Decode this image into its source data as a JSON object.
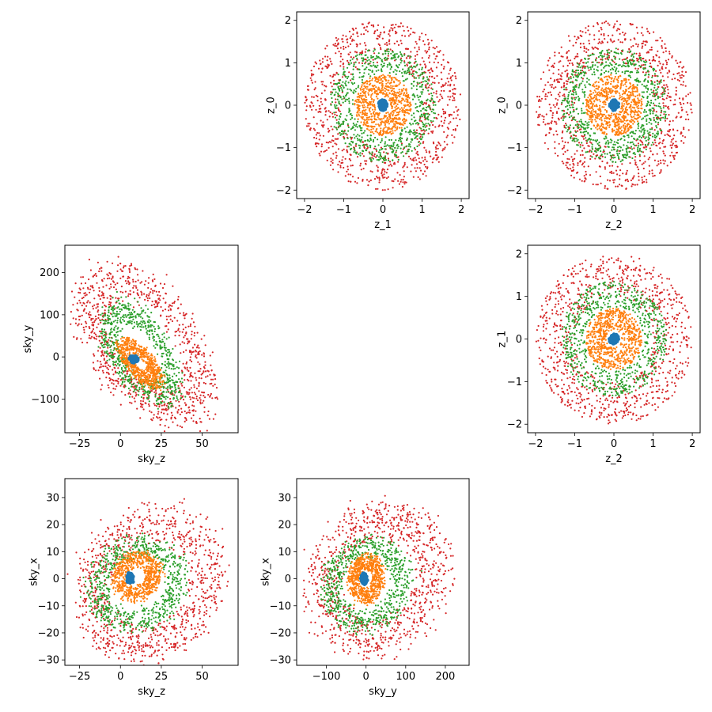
{
  "figure": {
    "background": "#ffffff"
  },
  "colors": {
    "shell_0": "#1f77b4",
    "shell_1": "#ff7f0e",
    "shell_2": "#2ca02c",
    "shell_3": "#d62728"
  },
  "chart_data": [
    {
      "id": "z1_vs_z0",
      "type": "scatter",
      "xlabel": "z_1",
      "ylabel": "z_0",
      "xlim": [
        -2.2,
        2.2
      ],
      "ylim": [
        -2.2,
        2.2
      ],
      "xticks": [
        -2,
        -1,
        0,
        1,
        2
      ],
      "yticks": [
        -2,
        -1,
        0,
        1,
        2
      ],
      "grid": false,
      "series": [
        {
          "color": "#d62728",
          "shape": "annulus",
          "radius_range": [
            1.0,
            2.0
          ],
          "n": 900
        },
        {
          "color": "#2ca02c",
          "shape": "annulus",
          "radius_range": [
            0.75,
            1.35
          ],
          "n": 700
        },
        {
          "color": "#ff7f0e",
          "shape": "annulus",
          "radius_range": [
            0.2,
            0.72
          ],
          "n": 700
        },
        {
          "color": "#1f77b4",
          "shape": "annulus",
          "radius_range": [
            0.0,
            0.12
          ],
          "n": 60
        }
      ]
    },
    {
      "id": "z2_vs_z0",
      "type": "scatter",
      "xlabel": "z_2",
      "ylabel": "z_0",
      "xlim": [
        -2.2,
        2.2
      ],
      "ylim": [
        -2.2,
        2.2
      ],
      "xticks": [
        -2,
        -1,
        0,
        1,
        2
      ],
      "yticks": [
        -2,
        -1,
        0,
        1,
        2
      ],
      "grid": false,
      "series": [
        {
          "color": "#d62728",
          "shape": "annulus",
          "radius_range": [
            1.0,
            2.0
          ],
          "n": 900
        },
        {
          "color": "#2ca02c",
          "shape": "annulus",
          "radius_range": [
            0.75,
            1.35
          ],
          "n": 700
        },
        {
          "color": "#ff7f0e",
          "shape": "annulus",
          "radius_range": [
            0.2,
            0.72
          ],
          "n": 700
        },
        {
          "color": "#1f77b4",
          "shape": "annulus",
          "radius_range": [
            0.0,
            0.12
          ],
          "n": 60
        }
      ]
    },
    {
      "id": "skyz_vs_skyy",
      "type": "scatter",
      "xlabel": "sky_z",
      "ylabel": "sky_y",
      "xlim": [
        -34,
        72
      ],
      "ylim": [
        -180,
        265
      ],
      "xticks": [
        -25,
        0,
        25,
        50
      ],
      "yticks": [
        -100,
        0,
        100,
        200
      ],
      "grid": false,
      "series": [
        {
          "color": "#d62728",
          "shape": "blob",
          "center": [
            15,
            30
          ],
          "axes": [
            42,
            170
          ],
          "tilt": -0.55,
          "hollow": 0.55,
          "n": 900
        },
        {
          "color": "#2ca02c",
          "shape": "blob",
          "center": [
            12,
            10
          ],
          "axes": [
            25,
            105
          ],
          "tilt": -0.6,
          "hollow": 0.55,
          "n": 700
        },
        {
          "color": "#ff7f0e",
          "shape": "blob",
          "center": [
            12,
            -15
          ],
          "axes": [
            14,
            45
          ],
          "tilt": -0.9,
          "hollow": 0.3,
          "n": 700
        },
        {
          "color": "#1f77b4",
          "shape": "blob",
          "center": [
            8,
            -5
          ],
          "axes": [
            3,
            8
          ],
          "tilt": 0,
          "hollow": 0,
          "n": 60
        }
      ]
    },
    {
      "id": "z2_vs_z1",
      "type": "scatter",
      "xlabel": "z_2",
      "ylabel": "z_1",
      "xlim": [
        -2.2,
        2.2
      ],
      "ylim": [
        -2.2,
        2.2
      ],
      "xticks": [
        -2,
        -1,
        0,
        1,
        2
      ],
      "yticks": [
        -2,
        -1,
        0,
        1,
        2
      ],
      "grid": false,
      "series": [
        {
          "color": "#d62728",
          "shape": "annulus",
          "radius_range": [
            1.0,
            2.0
          ],
          "n": 900
        },
        {
          "color": "#2ca02c",
          "shape": "annulus",
          "radius_range": [
            0.75,
            1.35
          ],
          "n": 700
        },
        {
          "color": "#ff7f0e",
          "shape": "annulus",
          "radius_range": [
            0.2,
            0.72
          ],
          "n": 700
        },
        {
          "color": "#1f77b4",
          "shape": "annulus",
          "radius_range": [
            0.0,
            0.12
          ],
          "n": 60
        }
      ]
    },
    {
      "id": "skyz_vs_skyx",
      "type": "scatter",
      "xlabel": "sky_z",
      "ylabel": "sky_x",
      "xlim": [
        -34,
        72
      ],
      "ylim": [
        -32,
        37
      ],
      "xticks": [
        -25,
        0,
        25,
        50
      ],
      "yticks": [
        -30,
        -20,
        -10,
        0,
        10,
        20,
        30
      ],
      "grid": false,
      "series": [
        {
          "color": "#d62728",
          "shape": "blob",
          "center": [
            18,
            -2
          ],
          "axes": [
            46,
            28
          ],
          "tilt": 0.15,
          "hollow": 0.55,
          "n": 900
        },
        {
          "color": "#2ca02c",
          "shape": "blob",
          "center": [
            10,
            -2
          ],
          "axes": [
            30,
            17
          ],
          "tilt": 0.1,
          "hollow": 0.6,
          "n": 700
        },
        {
          "color": "#ff7f0e",
          "shape": "blob",
          "center": [
            10,
            1
          ],
          "axes": [
            15,
            9
          ],
          "tilt": 0.1,
          "hollow": 0.35,
          "n": 700
        },
        {
          "color": "#1f77b4",
          "shape": "blob",
          "center": [
            6,
            0
          ],
          "axes": [
            2,
            2
          ],
          "tilt": 0,
          "hollow": 0,
          "n": 60
        }
      ]
    },
    {
      "id": "skyy_vs_skyx",
      "type": "scatter",
      "xlabel": "sky_y",
      "ylabel": "sky_x",
      "xlim": [
        -175,
        260
      ],
      "ylim": [
        -32,
        37
      ],
      "xticks": [
        -100,
        0,
        100,
        200
      ],
      "yticks": [
        -30,
        -20,
        -10,
        0,
        10,
        20,
        30
      ],
      "grid": false,
      "series": [
        {
          "color": "#d62728",
          "shape": "blob",
          "center": [
            30,
            0
          ],
          "axes": [
            180,
            28
          ],
          "tilt": 0.12,
          "hollow": 0.55,
          "n": 900
        },
        {
          "color": "#2ca02c",
          "shape": "blob",
          "center": [
            0,
            -2
          ],
          "axes": [
            110,
            17
          ],
          "tilt": 0.1,
          "hollow": 0.6,
          "n": 700
        },
        {
          "color": "#ff7f0e",
          "shape": "blob",
          "center": [
            0,
            0
          ],
          "axes": [
            45,
            9
          ],
          "tilt": 0.05,
          "hollow": 0.35,
          "n": 700
        },
        {
          "color": "#1f77b4",
          "shape": "blob",
          "center": [
            -5,
            0
          ],
          "axes": [
            8,
            2
          ],
          "tilt": 0,
          "hollow": 0,
          "n": 60
        }
      ]
    }
  ]
}
